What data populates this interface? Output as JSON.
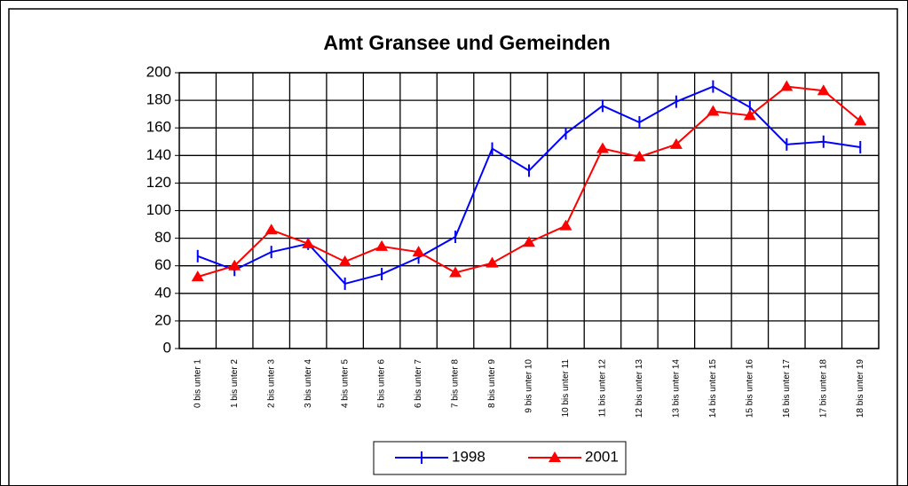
{
  "chart_data": {
    "type": "line",
    "title": "Amt Gransee und Gemeinden",
    "categories": [
      "0 bis unter 1",
      "1 bis unter 2",
      "2 bis unter 3",
      "3 bis unter 4",
      "4 bis unter 5",
      "5 bis unter 6",
      "6 bis unter 7",
      "7 bis unter 8",
      "8 bis unter 9",
      "9 bis unter 10",
      "10 bis unter 11",
      "11 bis unter 12",
      "12 bis unter 13",
      "13 bis unter 14",
      "14 bis unter 15",
      "15 bis unter 16",
      "16 bis unter 17",
      "17 bis unter 18",
      "18 bis unter 19"
    ],
    "series": [
      {
        "name": "1998",
        "color": "#0000ff",
        "marker": "tick",
        "values": [
          67,
          57,
          70,
          76,
          47,
          54,
          66,
          81,
          145,
          129,
          156,
          176,
          164,
          179,
          190,
          175,
          148,
          150,
          146
        ]
      },
      {
        "name": "2001",
        "color": "#ff0000",
        "marker": "triangle",
        "values": [
          52,
          60,
          86,
          76,
          63,
          74,
          70,
          55,
          62,
          77,
          89,
          145,
          139,
          148,
          172,
          169,
          190,
          187,
          165
        ]
      }
    ],
    "ylim": [
      0,
      200
    ],
    "yticks": [
      0,
      20,
      40,
      60,
      80,
      100,
      120,
      140,
      160,
      180,
      200
    ],
    "grid": true,
    "legend": "bottom"
  }
}
